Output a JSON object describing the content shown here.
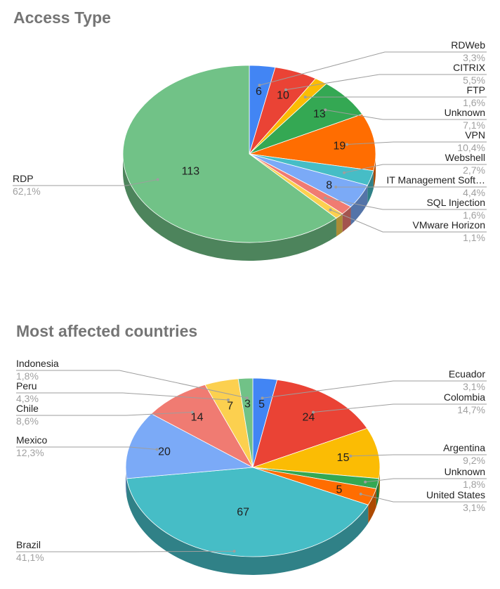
{
  "chart_data": [
    {
      "type": "pie",
      "title": "Access Type",
      "three_d": true,
      "legend": "labeled leader lines",
      "slices": [
        {
          "label": "RDWeb",
          "value": 6,
          "percent": "3,3%",
          "color": "#4285f4"
        },
        {
          "label": "CITRIX",
          "value": 10,
          "percent": "5,5%",
          "color": "#ea4335"
        },
        {
          "label": "FTP",
          "value": 3,
          "percent": "1,6%",
          "color": "#fbbc04"
        },
        {
          "label": "Unknown",
          "value": 13,
          "percent": "7,1%",
          "color": "#34a853"
        },
        {
          "label": "VPN",
          "value": 19,
          "percent": "10,4%",
          "color": "#ff6d01"
        },
        {
          "label": "Webshell",
          "value": 5,
          "percent": "2,7%",
          "color": "#46bdc6"
        },
        {
          "label": "IT Management Soft…",
          "value": 8,
          "percent": "4,4%",
          "color": "#7baaf7"
        },
        {
          "label": "SQL Injection",
          "value": 3,
          "percent": "1,6%",
          "color": "#f07b72"
        },
        {
          "label": "VMware Horizon",
          "value": 2,
          "percent": "1,1%",
          "color": "#fcd04f"
        },
        {
          "label": "RDP",
          "value": 113,
          "percent": "62,1%",
          "color": "#71c287"
        }
      ],
      "shown_value_labels": [
        "6",
        "10",
        "13",
        "19",
        "8",
        "113"
      ]
    },
    {
      "type": "pie",
      "title": "Most affected countries",
      "three_d": true,
      "legend": "labeled leader lines",
      "slices": [
        {
          "label": "Ecuador",
          "value": 5,
          "percent": "3,1%",
          "color": "#4285f4"
        },
        {
          "label": "Colombia",
          "value": 24,
          "percent": "14,7%",
          "color": "#ea4335"
        },
        {
          "label": "Argentina",
          "value": 15,
          "percent": "9,2%",
          "color": "#fbbc04"
        },
        {
          "label": "Unknown",
          "value": 3,
          "percent": "1,8%",
          "color": "#34a853"
        },
        {
          "label": "United States",
          "value": 5,
          "percent": "3,1%",
          "color": "#ff6d01"
        },
        {
          "label": "Brazil",
          "value": 67,
          "percent": "41,1%",
          "color": "#46bdc6"
        },
        {
          "label": "Mexico",
          "value": 20,
          "percent": "12,3%",
          "color": "#7baaf7"
        },
        {
          "label": "Chile",
          "value": 14,
          "percent": "8,6%",
          "color": "#f07b72"
        },
        {
          "label": "Peru",
          "value": 7,
          "percent": "4,3%",
          "color": "#fcd04f"
        },
        {
          "label": "Indonesia",
          "value": 3,
          "percent": "1,8%",
          "color": "#71c287"
        }
      ],
      "shown_value_labels": [
        "5",
        "24",
        "15",
        "5",
        "67",
        "20",
        "14",
        "7",
        "3"
      ]
    }
  ]
}
